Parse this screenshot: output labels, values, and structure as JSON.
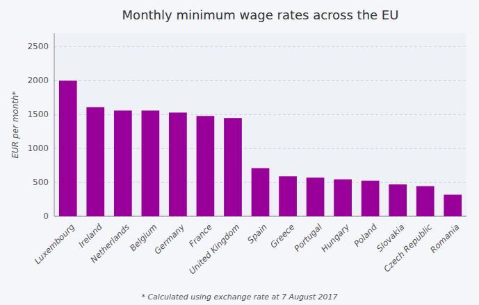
{
  "chart_data": {
    "type": "bar",
    "title": "Monthly minimum wage rates across the EU",
    "ylabel": "EUR per month*",
    "footnote": "* Calculated using exchange rate at 7 August 2017",
    "categories": [
      "Luxembourg",
      "Ireland",
      "Netherlands",
      "Belgium",
      "Germany",
      "France",
      "United Kingdom",
      "Spain",
      "Greece",
      "Portugal",
      "Hungary",
      "Poland",
      "Slovakia",
      "Czech Republic",
      "Romania"
    ],
    "values": [
      2000,
      1610,
      1560,
      1560,
      1530,
      1480,
      1450,
      710,
      590,
      570,
      545,
      525,
      470,
      445,
      320
    ],
    "color": "#990099",
    "ylim": [
      0,
      2700
    ],
    "yticks": [
      0,
      500,
      1000,
      1500,
      2000,
      2500
    ],
    "grid": true
  }
}
